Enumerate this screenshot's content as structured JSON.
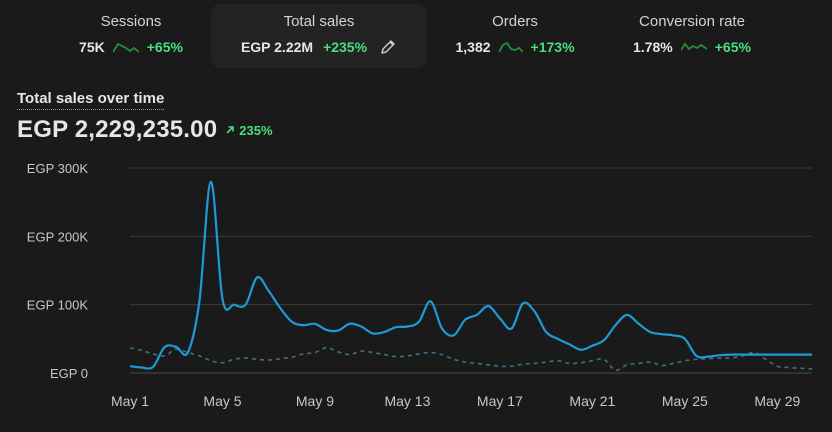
{
  "metrics": [
    {
      "title": "Sessions",
      "value": "75K",
      "change": "+65%"
    },
    {
      "title": "Total sales",
      "value": "EGP 2.22M",
      "change": "+235%"
    },
    {
      "title": "Orders",
      "value": "1,382",
      "change": "+173%"
    },
    {
      "title": "Conversion rate",
      "value": "1.78%",
      "change": "+65%"
    }
  ],
  "chart_header": {
    "title": "Total sales over time",
    "total": "EGP 2,229,235.00",
    "change": "235%"
  },
  "colors": {
    "accent": "#1e9ad6",
    "positive": "#4ade80",
    "comparison": "#3f6f8a",
    "sparkline": "#2a8a3e"
  },
  "icons": {
    "edit": "pencil-icon",
    "trend": "arrow-up-right-icon"
  },
  "chart_data": {
    "type": "line",
    "title": "Total sales over time",
    "ylabel": "",
    "xlabel": "",
    "ylim": [
      0,
      300000
    ],
    "yticks": [
      0,
      100000,
      200000,
      300000
    ],
    "ytick_labels": [
      "EGP 0",
      "EGP 100K",
      "EGP 200K",
      "EGP 300K"
    ],
    "xtick_days": [
      1,
      5,
      9,
      13,
      17,
      21,
      25,
      29
    ],
    "xtick_labels": [
      "May 1",
      "May 5",
      "May 9",
      "May 13",
      "May 17",
      "May 21",
      "May 25",
      "May 29"
    ],
    "grid": true,
    "series": [
      {
        "style": "solid",
        "x": [
          1,
          1.5,
          2,
          2.5,
          3,
          3.5,
          4,
          4.5,
          5,
          5.5,
          6,
          6.5,
          7,
          7.5,
          8,
          8.5,
          9,
          9.5,
          10,
          10.5,
          11,
          11.5,
          12,
          12.5,
          13,
          13.5,
          14,
          14.5,
          15,
          15.5,
          16,
          16.5,
          17,
          17.5,
          18,
          18.5,
          19,
          19.5,
          20,
          20.5,
          21,
          21.5,
          22,
          22.5,
          23,
          23.5,
          24,
          24.5,
          25,
          25.5,
          26,
          26.5,
          27,
          27.5,
          28,
          28.5,
          29,
          29.5,
          30,
          30.5
        ],
        "y": [
          10000,
          8000,
          9000,
          38000,
          38000,
          30000,
          105000,
          280000,
          108000,
          100000,
          100000,
          140000,
          120000,
          95000,
          75000,
          70000,
          72000,
          63000,
          62000,
          72000,
          68000,
          58000,
          60000,
          67000,
          68000,
          75000,
          105000,
          65000,
          55000,
          78000,
          85000,
          98000,
          80000,
          65000,
          102000,
          90000,
          60000,
          50000,
          42000,
          34000,
          40000,
          48000,
          70000,
          85000,
          72000,
          60000,
          57000,
          55000,
          50000,
          25000,
          24000,
          26000,
          27000,
          27000,
          27000,
          27000,
          27000,
          27000,
          27000,
          27000
        ]
      },
      {
        "style": "dashed",
        "x": [
          1,
          1.5,
          2,
          2.5,
          3,
          3.5,
          4,
          4.5,
          5,
          5.5,
          6,
          6.5,
          7,
          7.5,
          8,
          8.5,
          9,
          9.5,
          10,
          10.5,
          11,
          11.5,
          12,
          12.5,
          13,
          13.5,
          14,
          14.5,
          15,
          15.5,
          16,
          16.5,
          17,
          17.5,
          18,
          18.5,
          19,
          19.5,
          20,
          20.5,
          21,
          21.5,
          22,
          22.5,
          23,
          23.5,
          24,
          24.5,
          25,
          25.5,
          26,
          26.5,
          27,
          27.5,
          28,
          28.5,
          29,
          29.5,
          30,
          30.5
        ],
        "y": [
          37000,
          33000,
          28000,
          25000,
          35000,
          30000,
          25000,
          18000,
          15000,
          20000,
          22000,
          20000,
          19000,
          21000,
          23000,
          28000,
          30000,
          37000,
          31000,
          27000,
          32000,
          30000,
          27000,
          24000,
          25000,
          28000,
          30000,
          27000,
          20000,
          16000,
          14000,
          12000,
          10000,
          10000,
          13000,
          14000,
          16000,
          18000,
          14000,
          15000,
          18000,
          20000,
          4000,
          12000,
          14000,
          16000,
          11000,
          14000,
          18000,
          20000,
          21000,
          22000,
          22000,
          25000,
          30000,
          20000,
          10000,
          8000,
          7000,
          6000
        ]
      }
    ]
  }
}
